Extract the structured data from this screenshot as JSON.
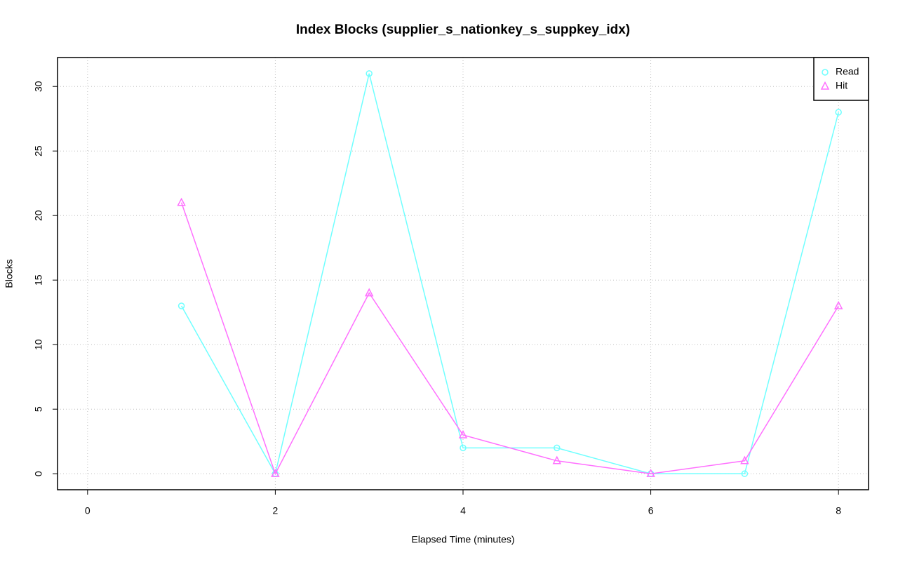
{
  "chart_data": {
    "type": "line",
    "title": "Index Blocks (supplier_s_nationkey_s_suppkey_idx)",
    "x_label": "Elapsed Time (minutes)",
    "y_label": "Blocks",
    "x": [
      1,
      2,
      3,
      4,
      5,
      6,
      7,
      8
    ],
    "series": [
      {
        "name": "Read",
        "color": "#70ffff",
        "marker": "circle",
        "values": [
          13,
          0,
          31,
          2,
          2,
          0,
          0,
          28
        ]
      },
      {
        "name": "Hit",
        "color": "#ff70ff",
        "marker": "triangle",
        "values": [
          21,
          0,
          14,
          3,
          1,
          0,
          1,
          13
        ]
      }
    ],
    "xlim": [
      -0.32,
      8.32
    ],
    "ylim": [
      -1.24,
      32.24
    ],
    "xticks": [
      0,
      2,
      4,
      6,
      8
    ],
    "yticks": [
      0,
      5,
      10,
      15,
      20,
      25,
      30
    ],
    "grid": true,
    "legend": "topright"
  }
}
